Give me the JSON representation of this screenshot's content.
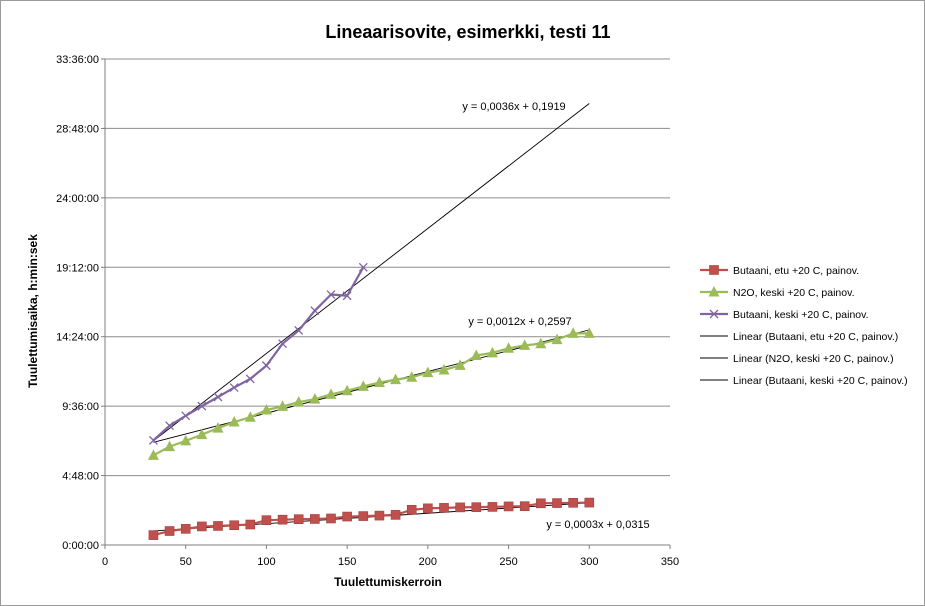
{
  "chart_data": {
    "type": "line",
    "title": "Lineaarisovite, esimerkki, testi 11",
    "xlabel": "Tuulettumiskerroin",
    "ylabel": "Tuulettumisaika, h:min:sek",
    "xlim": [
      0,
      350
    ],
    "x_ticks": [
      0,
      50,
      100,
      150,
      200,
      250,
      300,
      350
    ],
    "ylim_seconds": [
      0,
      120960
    ],
    "y_ticks_seconds": [
      0,
      17280,
      34560,
      51840,
      69120,
      86400,
      103680,
      120960
    ],
    "y_tick_labels": [
      "0:00:00",
      "4:48:00",
      "9:36:00",
      "14:24:00",
      "19:12:00",
      "24:00:00",
      "28:48:00",
      "33:36:00"
    ],
    "grid": "horizontal",
    "legend_position": "right",
    "series": [
      {
        "name": "Butaani, etu  +20 C, painov.",
        "color": "#c0504d",
        "marker": "square",
        "x": [
          30,
          40,
          50,
          60,
          70,
          80,
          90,
          100,
          110,
          120,
          130,
          140,
          150,
          160,
          170,
          180,
          190,
          200,
          210,
          220,
          230,
          240,
          250,
          260,
          270,
          280,
          290,
          300
        ],
        "y": [
          "0:41:00",
          "0:58:00",
          "1:07:00",
          "1:17:00",
          "1:19:00",
          "1:22:00",
          "1:25:00",
          "1:43:00",
          "1:45:00",
          "1:47:00",
          "1:48:00",
          "1:50:00",
          "1:58:00",
          "2:00:00",
          "2:02:00",
          "2:05:00",
          "2:26:00",
          "2:32:00",
          "2:34:00",
          "2:36:00",
          "2:37:00",
          "2:38:00",
          "2:40:00",
          "2:41:00",
          "2:53:00",
          "2:54:00",
          "2:55:00",
          "2:56:00"
        ]
      },
      {
        "name": "N2O, keski  +20 C, painov.",
        "color": "#9bbb59",
        "marker": "triangle",
        "x": [
          30,
          40,
          50,
          60,
          70,
          80,
          90,
          100,
          110,
          120,
          130,
          140,
          150,
          160,
          170,
          180,
          190,
          200,
          210,
          220,
          230,
          240,
          250,
          260,
          270,
          280,
          290,
          300
        ],
        "y": [
          "6:12:00",
          "6:48:00",
          "7:12:00",
          "7:38:00",
          "8:05:00",
          "8:30:00",
          "8:50:00",
          "9:20:00",
          "9:35:00",
          "9:53:00",
          "10:05:00",
          "10:25:00",
          "10:40:00",
          "10:58:00",
          "11:14:00",
          "11:26:00",
          "11:36:00",
          "11:55:00",
          "12:06:00",
          "12:25:00",
          "13:06:00",
          "13:17:00",
          "13:36:00",
          "13:48:00",
          "13:55:00",
          "14:12:00",
          "14:38:00",
          "14:38:00"
        ]
      },
      {
        "name": "Butaani, keski  +20 C, painov.",
        "color": "#8064a2",
        "marker": "x",
        "x": [
          30,
          40,
          50,
          60,
          70,
          80,
          90,
          100,
          110,
          120,
          130,
          140,
          150,
          160
        ],
        "y": [
          "7:14:00",
          "8:15:00",
          "8:56:00",
          "9:36:00",
          "10:14:00",
          "10:53:00",
          "11:29:00",
          "12:24:00",
          "13:55:00",
          "14:50:00",
          "16:12:00",
          "17:19:00",
          "17:14:00",
          "19:12:00"
        ]
      },
      {
        "name": "Linear (Butaani, etu  +20 C, painov.)",
        "color": "#000000",
        "line": "thin",
        "equation": "y = 0,0003x + 0,0315",
        "x_range": [
          30,
          300
        ]
      },
      {
        "name": "Linear (N2O, keski  +20 C, painov.)",
        "color": "#000000",
        "line": "thin",
        "equation": "y = 0,0012x + 0,2597",
        "x_range": [
          30,
          300
        ]
      },
      {
        "name": "Linear (Butaani, keski  +20 C, painov.)",
        "color": "#000000",
        "line": "thin",
        "equation": "y = 0,0036x + 0,1919",
        "x_range": [
          30,
          300
        ]
      }
    ]
  }
}
